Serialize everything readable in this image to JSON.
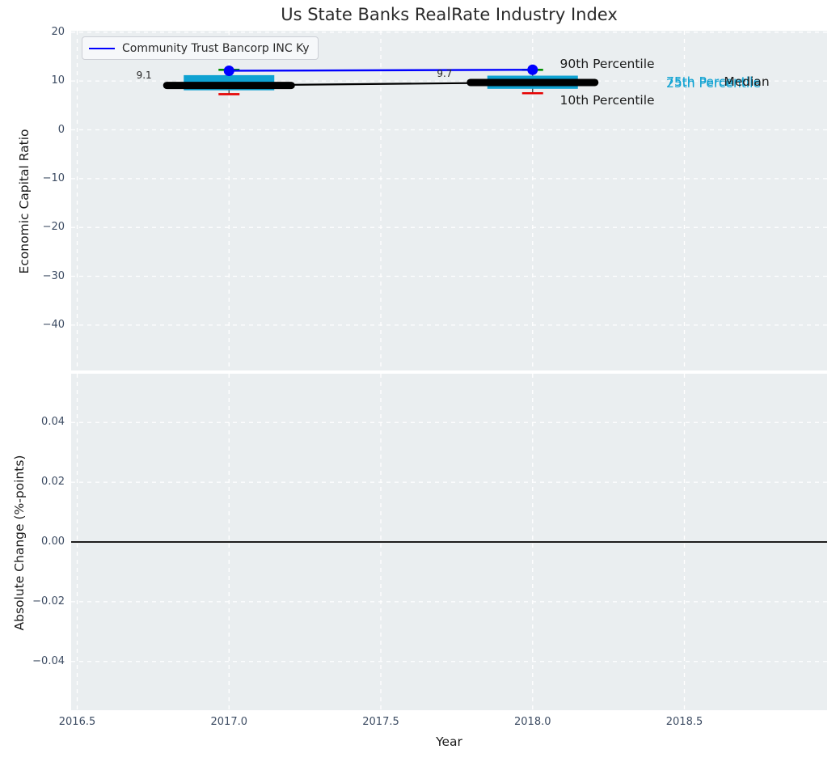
{
  "title": "Us State Banks RealRate Industry Index",
  "legend": {
    "label": "Community Trust Bancorp INC Ky",
    "color": "#0000ff"
  },
  "colors": {
    "axes_bg": "#eaeef0",
    "grid": "#ffffff",
    "box_fill": "#0fa2d2",
    "company_line": "#0000ff",
    "p90_marker": "#008f00",
    "p10_marker": "#e60000",
    "median_line": "#000000",
    "whisker": "#3a3a3a",
    "tick_label": "#3d4c63",
    "title_text": "#2b2b2b",
    "zero_line": "#000000"
  },
  "chart_data": [
    {
      "type": "box",
      "title": "Us State Banks RealRate Industry Index",
      "xlabel": "Year",
      "ylabel": "Economic Capital Ratio",
      "xlim": [
        2016.48,
        2018.97
      ],
      "ylim": [
        -49.3,
        20.3
      ],
      "grid": true,
      "legend_position": "upper left",
      "xticks": [
        2016.5,
        2017.0,
        2017.5,
        2018.0,
        2018.5
      ],
      "xtick_labels": [
        "2016.5",
        "2017.0",
        "2017.5",
        "2018.0",
        "2018.5"
      ],
      "yticks": [
        20,
        10,
        0,
        -10,
        -20,
        -30,
        -40
      ],
      "ytick_labels": [
        "20",
        "10",
        "0",
        "−10",
        "−20",
        "−30",
        "−40"
      ],
      "categories": [
        2017,
        2018
      ],
      "box_stats": {
        "p90": [
          12.3,
          12.3
        ],
        "p75": [
          11.2,
          11.1
        ],
        "median": [
          9.1,
          9.7
        ],
        "p25": [
          8.1,
          8.4
        ],
        "p10": [
          7.3,
          7.5
        ]
      },
      "series": [
        {
          "name": "Community Trust Bancorp INC Ky",
          "x": [
            2017,
            2018
          ],
          "values": [
            12.1,
            12.3
          ],
          "color": "#0000ff"
        }
      ],
      "annotations": [
        {
          "text": "9.1",
          "x": 2016.72,
          "y": 11.2,
          "color": "#262626",
          "size": 12,
          "anchor": "middle"
        },
        {
          "text": "9.7",
          "x": 2017.71,
          "y": 11.6,
          "color": "#262626",
          "size": 12,
          "anchor": "middle"
        },
        {
          "text": "90th Percentile",
          "x": 2018.09,
          "y": 13.4,
          "color": "#1a1a1a",
          "size": 15.5,
          "anchor": "start"
        },
        {
          "text": "10th Percentile",
          "x": 2018.09,
          "y": 6.0,
          "color": "#1a1a1a",
          "size": 15.5,
          "anchor": "start"
        },
        {
          "text": "75th Percentile",
          "x": 2018.44,
          "y": 9.8,
          "color": "#0fa2d2",
          "size": 15.5,
          "anchor": "start"
        },
        {
          "text": "25th Percentile",
          "x": 2018.44,
          "y": 9.4,
          "color": "#0fa2d2",
          "size": 15.5,
          "anchor": "start"
        },
        {
          "text": "Median",
          "x": 2018.63,
          "y": 9.7,
          "color": "#1a1a1a",
          "size": 15.5,
          "anchor": "start"
        }
      ]
    },
    {
      "type": "line",
      "ylabel": "Absolute Change (%-points)",
      "ylim": [
        -0.0563,
        0.0563
      ],
      "grid": true,
      "yticks": [
        0.04,
        0.02,
        0.0,
        -0.02,
        -0.04
      ],
      "ytick_labels": [
        "0.04",
        "0.02",
        "0.00",
        "−0.02",
        "−0.04"
      ],
      "zero_line": {
        "y": 0.0,
        "color": "#000000"
      },
      "series": []
    }
  ]
}
